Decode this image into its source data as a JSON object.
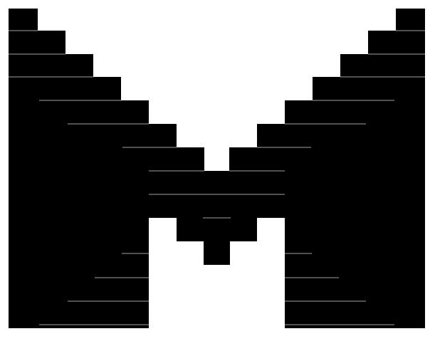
{
  "logo": {
    "name": "pixel-stair-m-logo",
    "fill_color": "#000000",
    "seam_color": "#d8d8d8",
    "background_color": "#ffffff"
  }
}
